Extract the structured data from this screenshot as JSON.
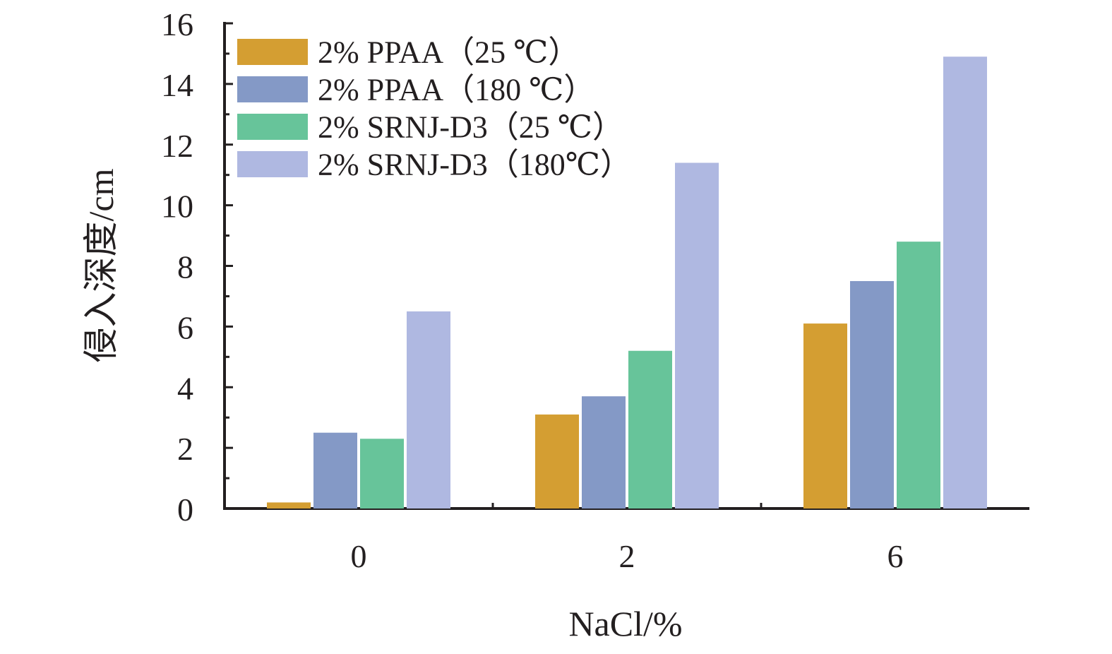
{
  "chart_data": {
    "type": "bar",
    "xlabel": "NaCl/%",
    "ylabel": "侵入深度/cm",
    "categories": [
      "0",
      "2",
      "6"
    ],
    "ylim": [
      0,
      16
    ],
    "yticks": [
      "0",
      "2",
      "4",
      "6",
      "8",
      "10",
      "12",
      "14",
      "16"
    ],
    "grid": false,
    "legend_position": "top-left",
    "series": [
      {
        "name": "2% PPAA（25 ℃）",
        "color": "#d49e32",
        "values": [
          0.2,
          3.1,
          6.1
        ]
      },
      {
        "name": "2% PPAA（180 ℃）",
        "color": "#8499c6",
        "values": [
          2.5,
          3.7,
          7.5
        ]
      },
      {
        "name": "2% SRNJ-D3（25 ℃）",
        "color": "#67c49a",
        "values": [
          2.3,
          5.2,
          8.8
        ]
      },
      {
        "name": "2% SRNJ-D3（180℃）",
        "color": "#afb8e1",
        "values": [
          6.5,
          11.4,
          14.9
        ]
      }
    ]
  }
}
